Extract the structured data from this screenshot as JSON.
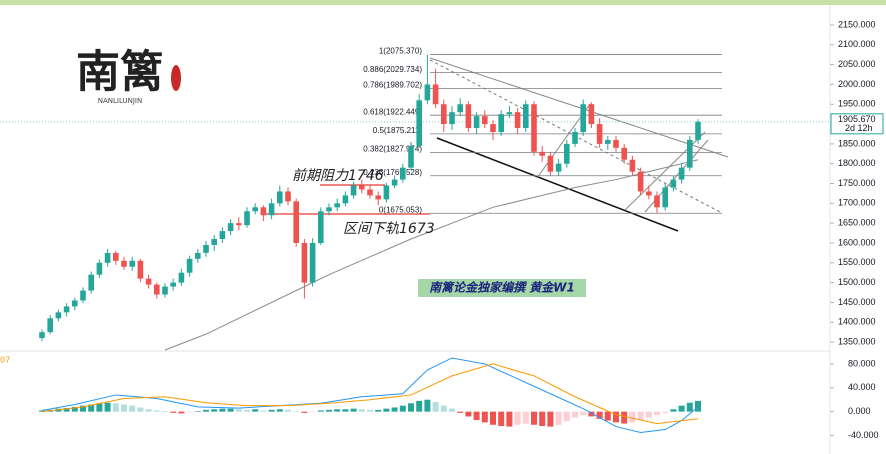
{
  "chart_data": {
    "type": "candlestick",
    "title": "南篱论金独家编撰  黄金W1",
    "logo": {
      "title": "南篱",
      "subtitle": "NANLILUNJIN"
    },
    "annotations": [
      {
        "text": "前期阻力1746"
      },
      {
        "text": "区间下轨1673"
      }
    ],
    "colors": {
      "up": "#26a69a",
      "down": "#ef5350"
    },
    "ylim": [
      1330,
      2213
    ],
    "yticks": [
      {
        "value": 2150,
        "label": "2150.000"
      },
      {
        "value": 2100,
        "label": "2100.000"
      },
      {
        "value": 2050,
        "label": "2050.000"
      },
      {
        "value": 2000,
        "label": "2000.000"
      },
      {
        "value": 1950,
        "label": "1950.000"
      },
      {
        "value": 1850,
        "label": "1850.000"
      },
      {
        "value": 1800,
        "label": "1800.000"
      },
      {
        "value": 1750,
        "label": "1750.000"
      },
      {
        "value": 1700,
        "label": "1700.000"
      },
      {
        "value": 1650,
        "label": "1650.000"
      },
      {
        "value": 1600,
        "label": "1600.000"
      },
      {
        "value": 1550,
        "label": "1550.000"
      },
      {
        "value": 1500,
        "label": "1500.000"
      },
      {
        "value": 1450,
        "label": "1450.000"
      },
      {
        "value": 1400,
        "label": "1400.000"
      },
      {
        "value": 1350,
        "label": "1350.000"
      }
    ],
    "last_price": {
      "value": 1905.67,
      "label": "1905.670",
      "countdown": "2d 12h"
    },
    "ohlc": [
      [
        1360,
        1382,
        1352,
        1375
      ],
      [
        1375,
        1418,
        1370,
        1410
      ],
      [
        1410,
        1432,
        1402,
        1425
      ],
      [
        1425,
        1448,
        1415,
        1440
      ],
      [
        1440,
        1462,
        1430,
        1455
      ],
      [
        1455,
        1488,
        1448,
        1480
      ],
      [
        1480,
        1528,
        1472,
        1520
      ],
      [
        1520,
        1558,
        1512,
        1550
      ],
      [
        1550,
        1585,
        1540,
        1575
      ],
      [
        1575,
        1580,
        1545,
        1555
      ],
      [
        1555,
        1565,
        1532,
        1540
      ],
      [
        1540,
        1565,
        1530,
        1555
      ],
      [
        1555,
        1560,
        1502,
        1510
      ],
      [
        1510,
        1520,
        1485,
        1495
      ],
      [
        1495,
        1500,
        1460,
        1470
      ],
      [
        1470,
        1498,
        1462,
        1490
      ],
      [
        1490,
        1510,
        1480,
        1500
      ],
      [
        1500,
        1535,
        1492,
        1525
      ],
      [
        1525,
        1568,
        1515,
        1560
      ],
      [
        1560,
        1585,
        1550,
        1575
      ],
      [
        1575,
        1605,
        1565,
        1595
      ],
      [
        1595,
        1620,
        1580,
        1610
      ],
      [
        1610,
        1640,
        1600,
        1630
      ],
      [
        1630,
        1660,
        1620,
        1650
      ],
      [
        1650,
        1665,
        1632,
        1645
      ],
      [
        1645,
        1690,
        1638,
        1680
      ],
      [
        1680,
        1700,
        1672,
        1690
      ],
      [
        1690,
        1695,
        1655,
        1670
      ],
      [
        1670,
        1712,
        1660,
        1700
      ],
      [
        1700,
        1745,
        1692,
        1730
      ],
      [
        1730,
        1740,
        1695,
        1705
      ],
      [
        1705,
        1712,
        1590,
        1600
      ],
      [
        1600,
        1610,
        1460,
        1500
      ],
      [
        1500,
        1612,
        1490,
        1600
      ],
      [
        1600,
        1690,
        1595,
        1680
      ],
      [
        1680,
        1700,
        1670,
        1690
      ],
      [
        1690,
        1712,
        1680,
        1700
      ],
      [
        1700,
        1730,
        1692,
        1720
      ],
      [
        1720,
        1755,
        1712,
        1745
      ],
      [
        1745,
        1760,
        1725,
        1735
      ],
      [
        1735,
        1745,
        1712,
        1720
      ],
      [
        1720,
        1730,
        1695,
        1710
      ],
      [
        1710,
        1752,
        1702,
        1745
      ],
      [
        1745,
        1770,
        1738,
        1760
      ],
      [
        1760,
        1800,
        1752,
        1790
      ],
      [
        1790,
        1855,
        1782,
        1845
      ],
      [
        1845,
        1975,
        1840,
        1960
      ],
      [
        1960,
        2075,
        1950,
        2000
      ],
      [
        2000,
        2040,
        1940,
        1950
      ],
      [
        1950,
        1962,
        1880,
        1900
      ],
      [
        1900,
        1945,
        1885,
        1930
      ],
      [
        1930,
        1965,
        1920,
        1950
      ],
      [
        1950,
        1958,
        1880,
        1890
      ],
      [
        1890,
        1930,
        1875,
        1920
      ],
      [
        1920,
        1935,
        1890,
        1900
      ],
      [
        1900,
        1910,
        1860,
        1880
      ],
      [
        1880,
        1935,
        1870,
        1925
      ],
      [
        1925,
        1945,
        1915,
        1930
      ],
      [
        1930,
        1940,
        1875,
        1890
      ],
      [
        1890,
        1960,
        1880,
        1950
      ],
      [
        1950,
        1958,
        1820,
        1830
      ],
      [
        1830,
        1845,
        1805,
        1820
      ],
      [
        1820,
        1830,
        1770,
        1780
      ],
      [
        1780,
        1812,
        1770,
        1800
      ],
      [
        1800,
        1860,
        1790,
        1850
      ],
      [
        1850,
        1890,
        1842,
        1880
      ],
      [
        1880,
        1962,
        1870,
        1950
      ],
      [
        1950,
        1955,
        1890,
        1900
      ],
      [
        1900,
        1915,
        1840,
        1850
      ],
      [
        1850,
        1870,
        1835,
        1860
      ],
      [
        1860,
        1870,
        1830,
        1840
      ],
      [
        1840,
        1850,
        1800,
        1810
      ],
      [
        1810,
        1820,
        1770,
        1780
      ],
      [
        1780,
        1790,
        1720,
        1730
      ],
      [
        1730,
        1745,
        1710,
        1720
      ],
      [
        1720,
        1730,
        1675,
        1690
      ],
      [
        1690,
        1750,
        1682,
        1740
      ],
      [
        1740,
        1770,
        1730,
        1760
      ],
      [
        1760,
        1800,
        1750,
        1790
      ],
      [
        1790,
        1870,
        1782,
        1860
      ],
      [
        1860,
        1912,
        1850,
        1905.67
      ]
    ],
    "moving_average": {
      "color": "#8a8a8a",
      "x": [
        15,
        20,
        25,
        30,
        35,
        40,
        45,
        50,
        55,
        60,
        65,
        70,
        75,
        80
      ],
      "values": [
        1330,
        1370,
        1420,
        1470,
        1520,
        1565,
        1610,
        1650,
        1690,
        1715,
        1740,
        1760,
        1785,
        1810
      ]
    },
    "fib": {
      "color": "#787b86",
      "levels": [
        {
          "value": 2075.37,
          "label": "1(2075.370)"
        },
        {
          "value": 2029.734,
          "label": "0.886(2029.734)"
        },
        {
          "value": 1989.702,
          "label": "0.786(1989.702)"
        },
        {
          "value": 1922.449,
          "label": "0.618(1922.449)"
        },
        {
          "value": 1875.211,
          "label": "0.5(1875.211)"
        },
        {
          "value": 1827.974,
          "label": "0.382(1827.974)"
        },
        {
          "value": 1769.528,
          "label": "0.236(1769.528)"
        },
        {
          "value": 1675.053,
          "label": "0(1675.053)"
        }
      ]
    },
    "macd": {
      "label": "07",
      "ylim": [
        -71,
        100
      ],
      "yticks": [
        {
          "value": 80,
          "label": "80.000"
        },
        {
          "value": 40,
          "label": "40.000"
        },
        {
          "value": 0,
          "label": "0.000"
        },
        {
          "value": -40,
          "label": "-40.000"
        }
      ],
      "histogram": [
        2,
        3,
        5,
        6,
        8,
        10,
        12,
        14,
        15,
        14,
        12,
        10,
        7,
        4,
        2,
        1,
        -2,
        -3,
        -1,
        1,
        3,
        4,
        5,
        5,
        4,
        3,
        4,
        2,
        3,
        4,
        3,
        1,
        -2,
        -1,
        2,
        3,
        4,
        4,
        5,
        4,
        3,
        3,
        5,
        7,
        10,
        14,
        18,
        20,
        16,
        10,
        5,
        -2,
        -8,
        -14,
        -18,
        -22,
        -24,
        -25,
        -22,
        -20,
        -22,
        -24,
        -25,
        -22,
        -16,
        -10,
        -6,
        -8,
        -12,
        -15,
        -18,
        -20,
        -18,
        -14,
        -10,
        -6,
        -2,
        4,
        10,
        15,
        18
      ],
      "series": [
        {
          "color": "#2196f3",
          "x": [
            0,
            4,
            9,
            14,
            19,
            24,
            29,
            34,
            39,
            44,
            47,
            50,
            54,
            58,
            62,
            66,
            70,
            73,
            76,
            78,
            80
          ],
          "values": [
            2,
            12,
            28,
            22,
            8,
            6,
            10,
            14,
            25,
            30,
            70,
            90,
            80,
            55,
            30,
            5,
            -25,
            -35,
            -30,
            -15,
            8
          ]
        },
        {
          "color": "#ff9800",
          "x": [
            0,
            5,
            10,
            15,
            20,
            25,
            30,
            35,
            40,
            45,
            50,
            55,
            60,
            65,
            70,
            75,
            80
          ],
          "values": [
            0,
            8,
            22,
            25,
            15,
            10,
            10,
            14,
            20,
            28,
            60,
            80,
            60,
            25,
            -5,
            -20,
            -12
          ]
        }
      ]
    }
  }
}
